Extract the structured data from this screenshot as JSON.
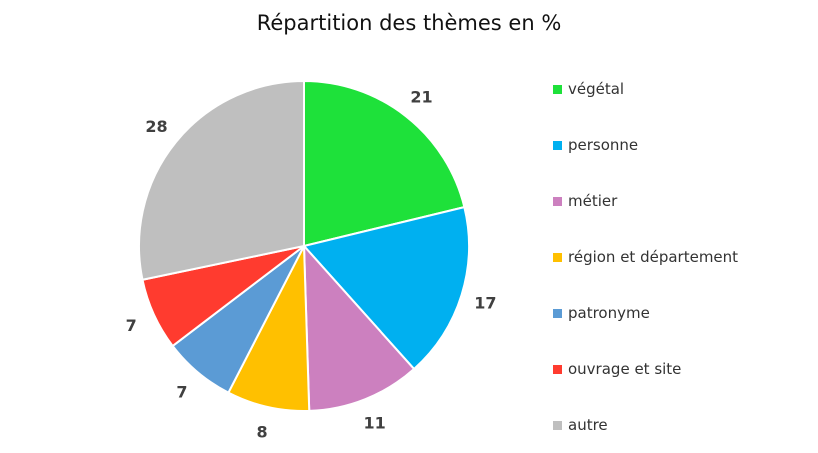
{
  "chart_data": {
    "type": "pie",
    "title": "Répartition des thèmes en %",
    "categories": [
      "végétal",
      "personne",
      "métier",
      "région et département",
      "patronyme",
      "ouvrage et site",
      "autre"
    ],
    "values": [
      21,
      17,
      11,
      8,
      7,
      7,
      28
    ],
    "colors": [
      "#1ee13a",
      "#00b0f0",
      "#cc80bf",
      "#ffc000",
      "#5b9bd5",
      "#ff3b2f",
      "#bfbfbf"
    ],
    "legend_position": "right",
    "start_angle": "12 o'clock",
    "direction": "clockwise"
  }
}
